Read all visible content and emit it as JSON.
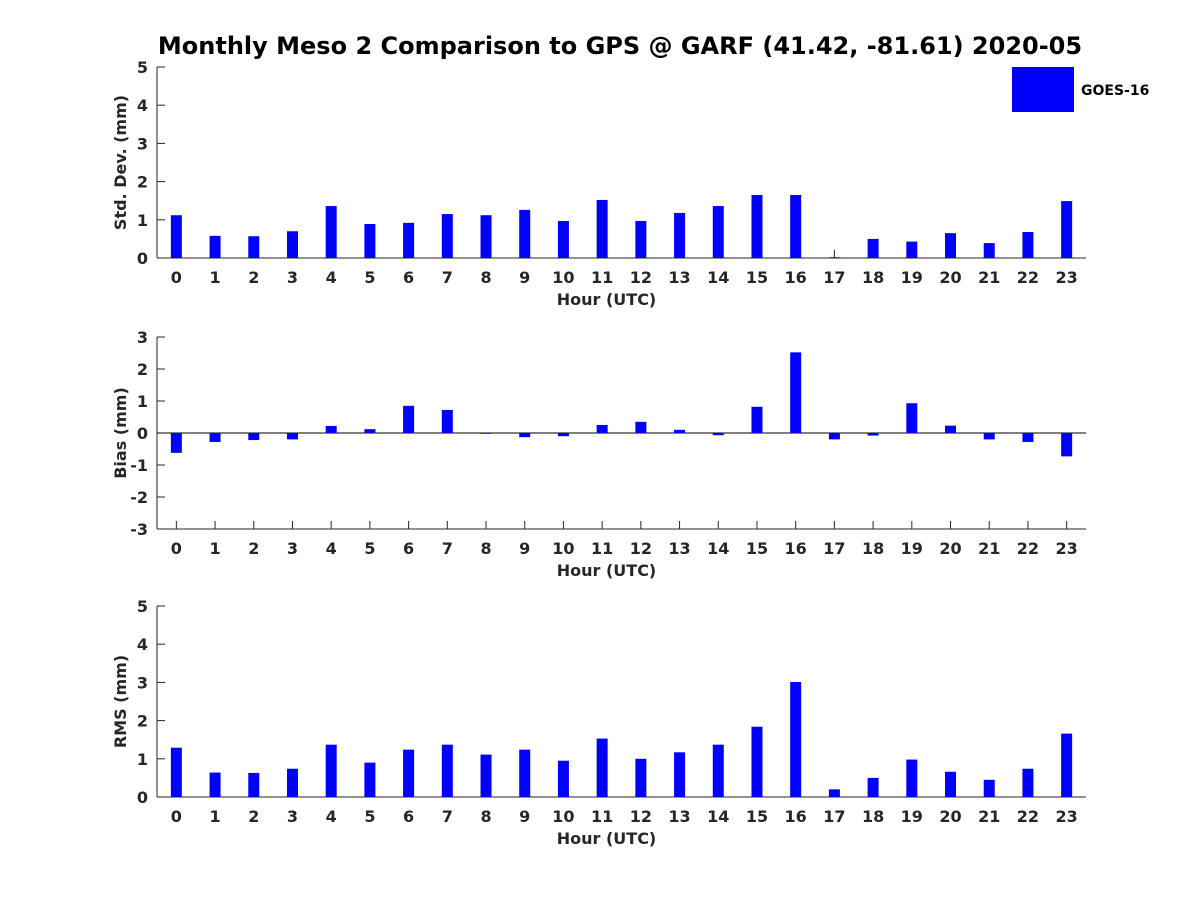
{
  "title": "Monthly Meso 2 Comparison to GPS @ GARF (41.42, -81.61) 2020-05",
  "legend": {
    "label": "GOES-16",
    "color": "#0000ff",
    "placement": "top-right"
  },
  "chart_data": [
    {
      "type": "bar",
      "title": "Monthly Meso 2 Comparison to GPS @ GARF (41.42, -81.61) 2020-05",
      "xlabel": "Hour (UTC)",
      "ylabel": "Std. Dev. (mm)",
      "ylim": [
        0,
        5
      ],
      "yticks": [
        0,
        1,
        2,
        3,
        4,
        5
      ],
      "categories": [
        "0",
        "1",
        "2",
        "3",
        "4",
        "5",
        "6",
        "7",
        "8",
        "9",
        "10",
        "11",
        "12",
        "13",
        "14",
        "15",
        "16",
        "17",
        "18",
        "19",
        "20",
        "21",
        "22",
        "23"
      ],
      "series": [
        {
          "name": "GOES-16",
          "color": "#0000ff",
          "values": [
            1.12,
            0.58,
            0.57,
            0.7,
            1.36,
            0.89,
            0.92,
            1.15,
            1.12,
            1.26,
            0.97,
            1.52,
            0.97,
            1.18,
            1.36,
            1.65,
            1.65,
            0.02,
            0.5,
            0.43,
            0.65,
            0.39,
            0.68,
            1.49
          ]
        }
      ],
      "grid": false
    },
    {
      "type": "bar",
      "xlabel": "Hour (UTC)",
      "ylabel": "Bias (mm)",
      "ylim": [
        -3,
        3
      ],
      "yticks": [
        -3,
        -2,
        -1,
        0,
        1,
        2,
        3
      ],
      "zero_line": true,
      "categories": [
        "0",
        "1",
        "2",
        "3",
        "4",
        "5",
        "6",
        "7",
        "8",
        "9",
        "10",
        "11",
        "12",
        "13",
        "14",
        "15",
        "16",
        "17",
        "18",
        "19",
        "20",
        "21",
        "22",
        "23"
      ],
      "series": [
        {
          "name": "GOES-16",
          "color": "#0000ff",
          "values": [
            -0.62,
            -0.28,
            -0.22,
            -0.2,
            0.22,
            0.12,
            0.85,
            0.72,
            -0.02,
            -0.13,
            -0.1,
            0.25,
            0.35,
            0.1,
            -0.07,
            0.82,
            2.52,
            -0.2,
            -0.08,
            0.93,
            0.23,
            -0.2,
            -0.28,
            -0.73
          ]
        }
      ],
      "grid": false
    },
    {
      "type": "bar",
      "xlabel": "Hour (UTC)",
      "ylabel": "RMS (mm)",
      "ylim": [
        0,
        5
      ],
      "yticks": [
        0,
        1,
        2,
        3,
        4,
        5
      ],
      "categories": [
        "0",
        "1",
        "2",
        "3",
        "4",
        "5",
        "6",
        "7",
        "8",
        "9",
        "10",
        "11",
        "12",
        "13",
        "14",
        "15",
        "16",
        "17",
        "18",
        "19",
        "20",
        "21",
        "22",
        "23"
      ],
      "series": [
        {
          "name": "GOES-16",
          "color": "#0000ff",
          "values": [
            1.29,
            0.64,
            0.63,
            0.74,
            1.37,
            0.9,
            1.24,
            1.37,
            1.11,
            1.24,
            0.95,
            1.53,
            1.0,
            1.17,
            1.37,
            1.84,
            3.01,
            0.2,
            0.5,
            0.98,
            0.66,
            0.45,
            0.74,
            1.66
          ]
        }
      ],
      "grid": false
    }
  ]
}
